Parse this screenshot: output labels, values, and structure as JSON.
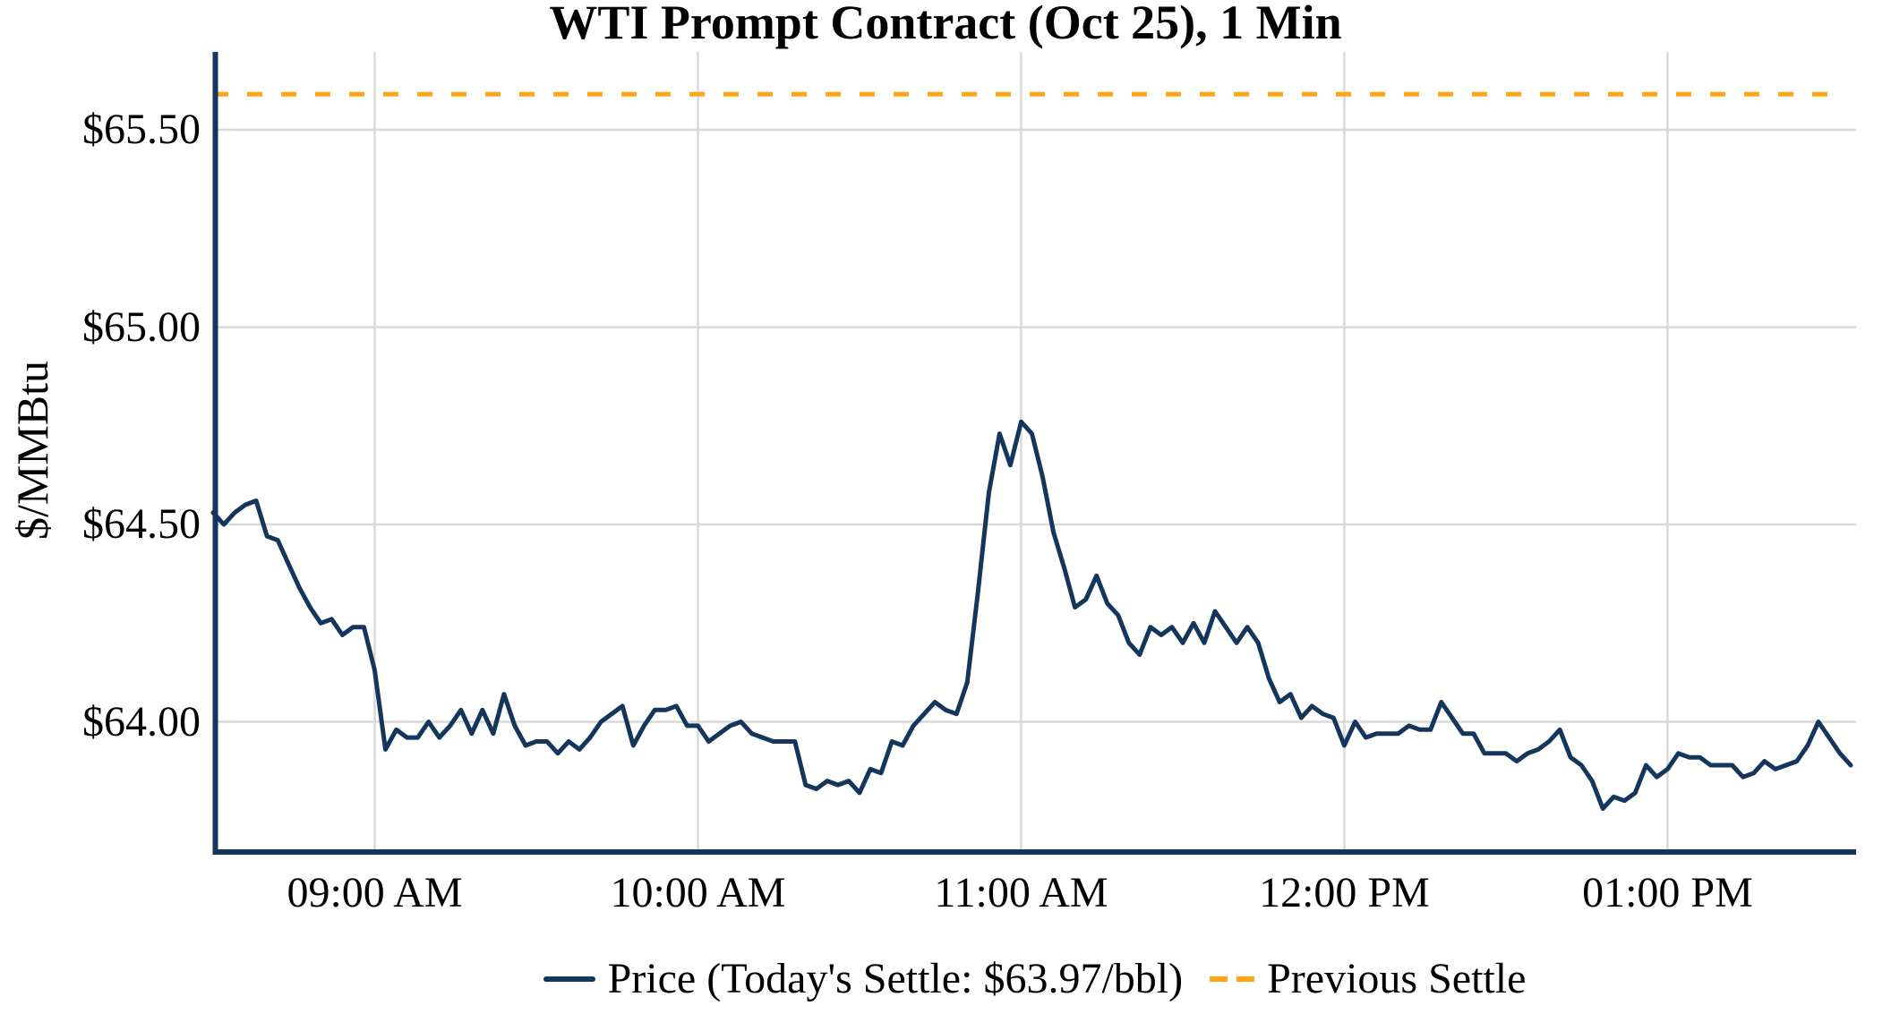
{
  "figure": {
    "title": "WTI Prompt Contract (Oct 25), 1 Min",
    "y_axis_label": "$/MMBtu",
    "legend": {
      "price_label": "Price (Today's Settle: $63.97/bbl)",
      "previous_settle_label": "Previous Settle"
    },
    "colors": {
      "price_line": "#14365c",
      "previous_settle_line": "#ffa319",
      "gridline": "#d9d9d9",
      "axis": "#14365c",
      "text": "#000000",
      "background": "#ffffff"
    }
  },
  "chart_data": {
    "type": "line",
    "title": "WTI Prompt Contract (Oct 25), 1 Min",
    "xlabel": "",
    "ylabel": "$/MMBtu",
    "grid": true,
    "legend_position": "bottom",
    "x_start": "08:30 AM",
    "x_end": "01:35 PM",
    "interval_minutes": 2,
    "total_minutes": 305,
    "ylim": [
      63.67,
      65.7
    ],
    "previous_settle": 65.59,
    "todays_settle": 63.97,
    "x_ticks": [
      {
        "label": "09:00 AM",
        "minutes": 30
      },
      {
        "label": "10:00 AM",
        "minutes": 90
      },
      {
        "label": "11:00 AM",
        "minutes": 150
      },
      {
        "label": "12:00 PM",
        "minutes": 210
      },
      {
        "label": "01:00 PM",
        "minutes": 270
      }
    ],
    "y_ticks": [
      {
        "label": "$64.00",
        "value": 64.0
      },
      {
        "label": "$64.50",
        "value": 64.5
      },
      {
        "label": "$65.00",
        "value": 65.0
      },
      {
        "label": "$65.50",
        "value": 65.5
      }
    ],
    "series": [
      {
        "name": "Price (Today's Settle: $63.97/bbl)",
        "values": [
          64.53,
          64.5,
          64.53,
          64.55,
          64.56,
          64.47,
          64.46,
          64.4,
          64.34,
          64.29,
          64.25,
          64.26,
          64.22,
          64.24,
          64.24,
          64.13,
          63.93,
          63.98,
          63.96,
          63.96,
          64.0,
          63.96,
          63.99,
          64.03,
          63.97,
          64.03,
          63.97,
          64.07,
          63.99,
          63.94,
          63.95,
          63.95,
          63.92,
          63.95,
          63.93,
          63.96,
          64.0,
          64.02,
          64.04,
          63.94,
          63.99,
          64.03,
          64.03,
          64.04,
          63.99,
          63.99,
          63.95,
          63.97,
          63.99,
          64.0,
          63.97,
          63.96,
          63.95,
          63.95,
          63.95,
          63.84,
          63.83,
          63.85,
          63.84,
          63.85,
          63.82,
          63.88,
          63.87,
          63.95,
          63.94,
          63.99,
          64.02,
          64.05,
          64.03,
          64.02,
          64.1,
          64.33,
          64.58,
          64.73,
          64.65,
          64.76,
          64.73,
          64.62,
          64.48,
          64.39,
          64.29,
          64.31,
          64.37,
          64.3,
          64.27,
          64.2,
          64.17,
          64.24,
          64.22,
          64.24,
          64.2,
          64.25,
          64.2,
          64.28,
          64.24,
          64.2,
          64.24,
          64.2,
          64.11,
          64.05,
          64.07,
          64.01,
          64.04,
          64.02,
          64.01,
          63.94,
          64.0,
          63.96,
          63.97,
          63.97,
          63.97,
          63.99,
          63.98,
          63.98,
          64.05,
          64.01,
          63.97,
          63.97,
          63.92,
          63.92,
          63.92,
          63.9,
          63.92,
          63.93,
          63.95,
          63.98,
          63.91,
          63.89,
          63.85,
          63.78,
          63.81,
          63.8,
          63.82,
          63.89,
          63.86,
          63.88,
          63.92,
          63.91,
          63.91,
          63.89,
          63.89,
          63.89,
          63.86,
          63.87,
          63.9,
          63.88,
          63.89,
          63.9,
          63.94,
          64.0,
          63.96,
          63.92,
          63.89
        ]
      },
      {
        "name": "Previous Settle",
        "values": [
          65.59
        ]
      }
    ]
  }
}
